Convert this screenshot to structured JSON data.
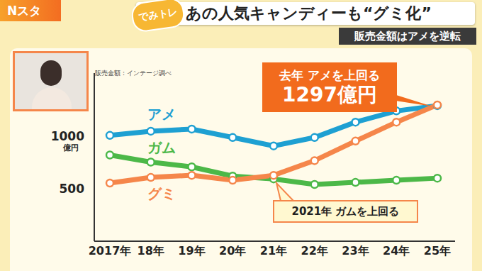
{
  "program": "Nスタ",
  "corner": "でみトレ",
  "chart_data": {
    "type": "line",
    "title": "あの人気キャンディーも“グミ化”",
    "subtitle": "販売金額はアメを逆転",
    "source": "販売金額：インテージ調べ",
    "categories": [
      "2017年",
      "18年",
      "19年",
      "20年",
      "21年",
      "22年",
      "23年",
      "24年",
      "25年"
    ],
    "y_label": "億円",
    "series": [
      {
        "name": "アメ",
        "color": "#1ea0d2",
        "values": [
          1007,
          1047,
          1067,
          987,
          907,
          987,
          1133,
          1240,
          1290
        ]
      },
      {
        "name": "ガム",
        "color": "#4cb848",
        "values": [
          820,
          753,
          707,
          620,
          593,
          540,
          560,
          580,
          600
        ]
      },
      {
        "name": "グミ",
        "color": "#f5864a",
        "values": [
          553,
          607,
          627,
          580,
          627,
          767,
          953,
          1133,
          1297
        ]
      }
    ],
    "ylim": [
      0,
      1600
    ],
    "yticks": [
      500,
      1000
    ],
    "grid": false,
    "marker": "circle",
    "annotations": [
      {
        "lines": [
          "去年 アメを上回る",
          "1297億円"
        ]
      },
      {
        "lines": [
          "2021年 ガムを上回る"
        ]
      }
    ]
  }
}
